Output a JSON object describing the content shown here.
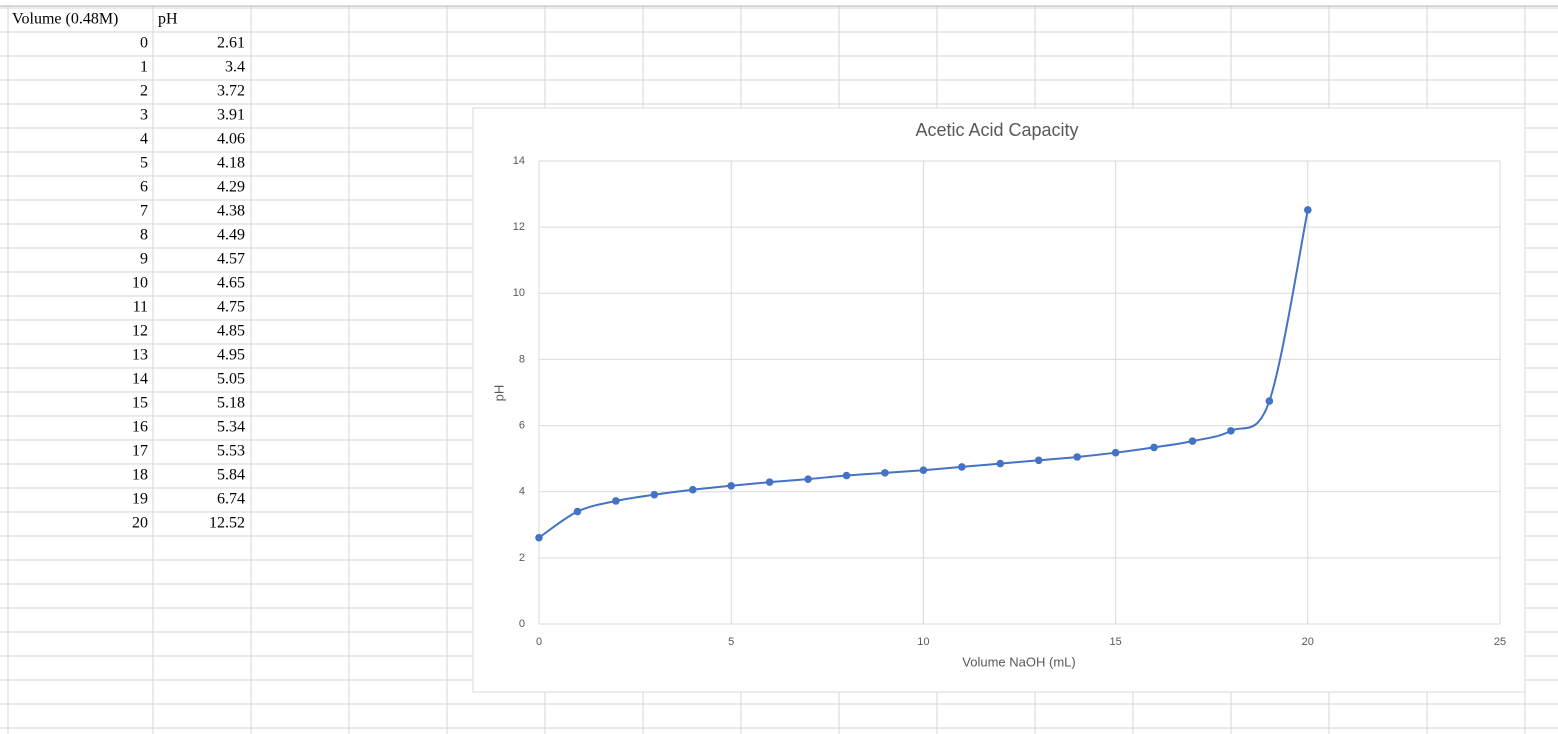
{
  "table": {
    "headers": [
      "Volume (0.48M)",
      "pH"
    ],
    "rows": [
      [
        0,
        2.61
      ],
      [
        1,
        3.4
      ],
      [
        2,
        3.72
      ],
      [
        3,
        3.91
      ],
      [
        4,
        4.06
      ],
      [
        5,
        4.18
      ],
      [
        6,
        4.29
      ],
      [
        7,
        4.38
      ],
      [
        8,
        4.49
      ],
      [
        9,
        4.57
      ],
      [
        10,
        4.65
      ],
      [
        11,
        4.75
      ],
      [
        12,
        4.85
      ],
      [
        13,
        4.95
      ],
      [
        14,
        5.05
      ],
      [
        15,
        5.18
      ],
      [
        16,
        5.34
      ],
      [
        17,
        5.53
      ],
      [
        18,
        5.84
      ],
      [
        19,
        6.74
      ],
      [
        20,
        12.52
      ]
    ]
  },
  "chart_data": {
    "type": "scatter",
    "smooth": true,
    "title": "Acetic Acid Capacity",
    "x_label": "Volume NaOH (mL)",
    "y_label": "pH",
    "x": [
      0,
      1,
      2,
      3,
      4,
      5,
      6,
      7,
      8,
      9,
      10,
      11,
      12,
      13,
      14,
      15,
      16,
      17,
      18,
      19,
      20
    ],
    "series": [
      {
        "name": "pH",
        "color": "#4472c4",
        "values": [
          2.61,
          3.4,
          3.72,
          3.91,
          4.06,
          4.18,
          4.29,
          4.38,
          4.49,
          4.57,
          4.65,
          4.75,
          4.85,
          4.95,
          5.05,
          5.18,
          5.34,
          5.53,
          5.84,
          6.74,
          12.52
        ]
      }
    ],
    "xlim": [
      0,
      25
    ],
    "xticks": [
      0,
      5,
      10,
      15,
      20,
      25
    ],
    "ylim": [
      0,
      14
    ],
    "yticks": [
      0,
      2,
      4,
      6,
      8,
      10,
      12,
      14
    ],
    "grid": true
  }
}
